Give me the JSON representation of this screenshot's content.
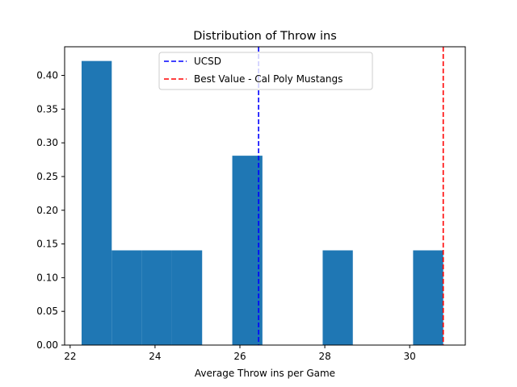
{
  "chart_data": {
    "type": "bar",
    "title": "Distribution of Throw ins",
    "xlabel": "Average Throw ins per Game",
    "ylabel": "",
    "xlim": [
      21.87,
      31.31
    ],
    "ylim": [
      0,
      0.4425
    ],
    "x_ticks": [
      22,
      24,
      26,
      28,
      30
    ],
    "y_ticks": [
      0.0,
      0.05,
      0.1,
      0.15,
      0.2,
      0.25,
      0.3,
      0.35,
      0.4
    ],
    "bin_edges": [
      22.27,
      22.98,
      23.69,
      24.4,
      25.11,
      25.82,
      26.53,
      27.24,
      27.95,
      28.66,
      29.37,
      30.08,
      30.79
    ],
    "values": [
      0.4214,
      0.1405,
      0.1405,
      0.1405,
      0.0,
      0.2809,
      0.0,
      0.0,
      0.1405,
      0.0,
      0.0,
      0.1405
    ],
    "bar_color": "#1f77b4",
    "reference_lines": [
      {
        "name": "UCSD",
        "x": 26.44,
        "color": "#0000ff",
        "style": "dashed"
      },
      {
        "name": "Best Value - Cal Poly Mustangs",
        "x": 30.79,
        "color": "#ff0000",
        "style": "dashed"
      }
    ],
    "legend_position": "upper center",
    "grid": false
  }
}
